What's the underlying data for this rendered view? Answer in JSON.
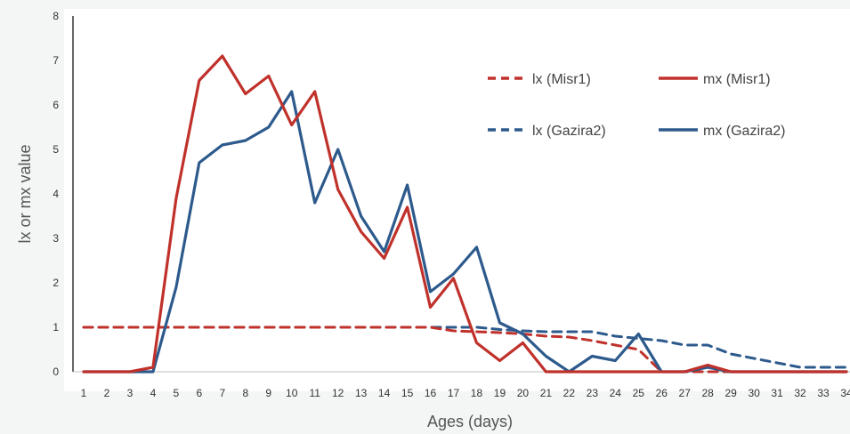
{
  "chart_data": {
    "type": "line",
    "title": "",
    "xlabel": "Ages (days)",
    "ylabel": "lx or mx value",
    "x": [
      1,
      2,
      3,
      4,
      5,
      6,
      7,
      8,
      9,
      10,
      11,
      12,
      13,
      14,
      15,
      16,
      17,
      18,
      19,
      20,
      21,
      22,
      23,
      24,
      25,
      26,
      27,
      28,
      29,
      30,
      31,
      32,
      33,
      34
    ],
    "ylim": [
      0,
      8
    ],
    "yticks": [
      "0",
      "1",
      "2",
      "3",
      "4",
      "5",
      "6",
      "7",
      "8"
    ],
    "grid": false,
    "legend_position": "top-right",
    "series": [
      {
        "name": "lx (Misr1)",
        "color": "#c0312b",
        "style": "dashed",
        "values": [
          1,
          1,
          1,
          1,
          1,
          1,
          1,
          1,
          1,
          1,
          1,
          1,
          1,
          1,
          1,
          1,
          0.92,
          0.9,
          0.88,
          0.85,
          0.8,
          0.78,
          0.7,
          0.6,
          0.5,
          0,
          0,
          0,
          0,
          0,
          0,
          0,
          0,
          0
        ]
      },
      {
        "name": "mx (Misr1)",
        "color": "#c0312b",
        "style": "solid",
        "values": [
          0,
          0,
          0,
          0.1,
          3.9,
          6.55,
          7.1,
          6.25,
          6.65,
          5.55,
          6.3,
          4.1,
          3.15,
          2.55,
          3.7,
          1.45,
          2.1,
          0.65,
          0.25,
          0.65,
          0,
          0,
          0,
          0,
          0,
          0,
          0,
          0.15,
          0,
          0,
          0,
          0,
          0,
          0
        ]
      },
      {
        "name": "lx (Gazira2)",
        "color": "#2d5a8c",
        "style": "dashed",
        "values": [
          1,
          1,
          1,
          1,
          1,
          1,
          1,
          1,
          1,
          1,
          1,
          1,
          1,
          1,
          1,
          1,
          1,
          1,
          0.95,
          0.92,
          0.9,
          0.9,
          0.9,
          0.8,
          0.75,
          0.7,
          0.6,
          0.6,
          0.4,
          0.3,
          0.2,
          0.1,
          0.1,
          0.1
        ]
      },
      {
        "name": "mx  (Gazira2)",
        "color": "#2d5a8c",
        "style": "solid",
        "values": [
          0,
          0,
          0,
          0,
          1.9,
          4.7,
          5.1,
          5.2,
          5.5,
          6.3,
          3.8,
          5.0,
          3.5,
          2.7,
          4.2,
          1.8,
          2.2,
          2.8,
          1.1,
          0.85,
          0.35,
          0,
          0.35,
          0.25,
          0.85,
          0,
          0,
          0.1,
          0,
          0,
          0,
          0,
          0,
          0
        ]
      }
    ]
  }
}
